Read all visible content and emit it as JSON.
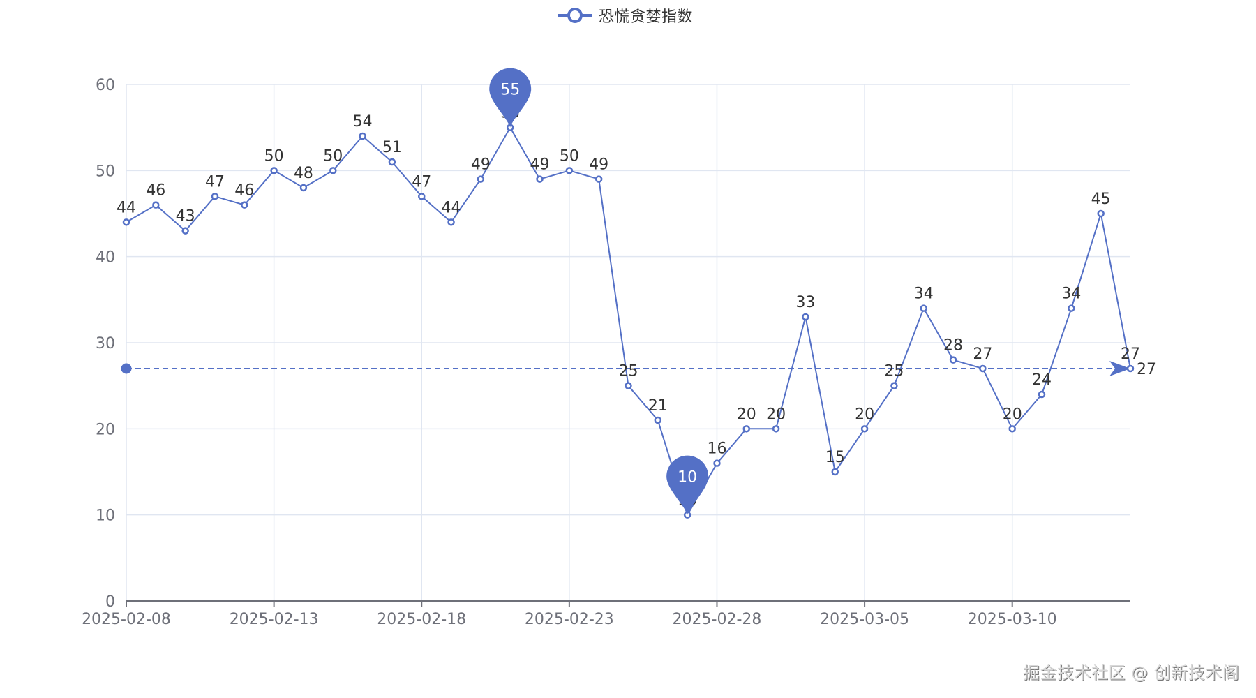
{
  "legend": {
    "label": "恐慌贪婪指数",
    "icon": "line-circle-icon"
  },
  "watermark": "掘金技术社区 @ 创新技术阁",
  "colors": {
    "series": "#5470c6",
    "grid": "#e0e6f1",
    "axis": "#6e7079",
    "label": "#333333",
    "tick_label": "#6e7079"
  },
  "chart_data": {
    "type": "line",
    "title": "",
    "xlabel": "",
    "ylabel": "",
    "legend": [
      "恐慌贪婪指数"
    ],
    "legend_position": "top-center",
    "grid": true,
    "ylim": [
      0,
      60
    ],
    "y_ticks": [
      0,
      10,
      20,
      30,
      40,
      50,
      60
    ],
    "x_tick_labels": [
      "2025-02-08",
      "2025-02-13",
      "2025-02-18",
      "2025-02-23",
      "2025-02-28",
      "2025-03-05",
      "2025-03-10"
    ],
    "x": [
      "2025-02-08",
      "2025-02-09",
      "2025-02-10",
      "2025-02-11",
      "2025-02-12",
      "2025-02-13",
      "2025-02-14",
      "2025-02-15",
      "2025-02-16",
      "2025-02-17",
      "2025-02-18",
      "2025-02-19",
      "2025-02-20",
      "2025-02-21",
      "2025-02-22",
      "2025-02-23",
      "2025-02-24",
      "2025-02-25",
      "2025-02-26",
      "2025-02-27",
      "2025-02-28",
      "2025-03-01",
      "2025-03-02",
      "2025-03-03",
      "2025-03-04",
      "2025-03-05",
      "2025-03-06",
      "2025-03-07",
      "2025-03-08",
      "2025-03-09",
      "2025-03-10",
      "2025-03-11",
      "2025-03-12",
      "2025-03-13",
      "2025-03-14"
    ],
    "series": [
      {
        "name": "恐慌贪婪指数",
        "values": [
          44,
          46,
          43,
          47,
          46,
          50,
          48,
          50,
          54,
          51,
          47,
          44,
          49,
          55,
          49,
          50,
          49,
          25,
          21,
          10,
          16,
          20,
          20,
          33,
          15,
          20,
          25,
          34,
          28,
          27,
          20,
          24,
          34,
          45,
          27
        ]
      }
    ],
    "annotations": {
      "mark_points": [
        {
          "type": "max",
          "label": "55",
          "x": "2025-02-21",
          "value": 55
        },
        {
          "type": "min",
          "label": "10",
          "x": "2025-02-27",
          "value": 10
        }
      ],
      "mark_line": {
        "type": "horizontal",
        "value": 27,
        "label": "27",
        "from": "2025-02-08",
        "to": "2025-03-14",
        "style": "dashed-arrow"
      }
    }
  }
}
